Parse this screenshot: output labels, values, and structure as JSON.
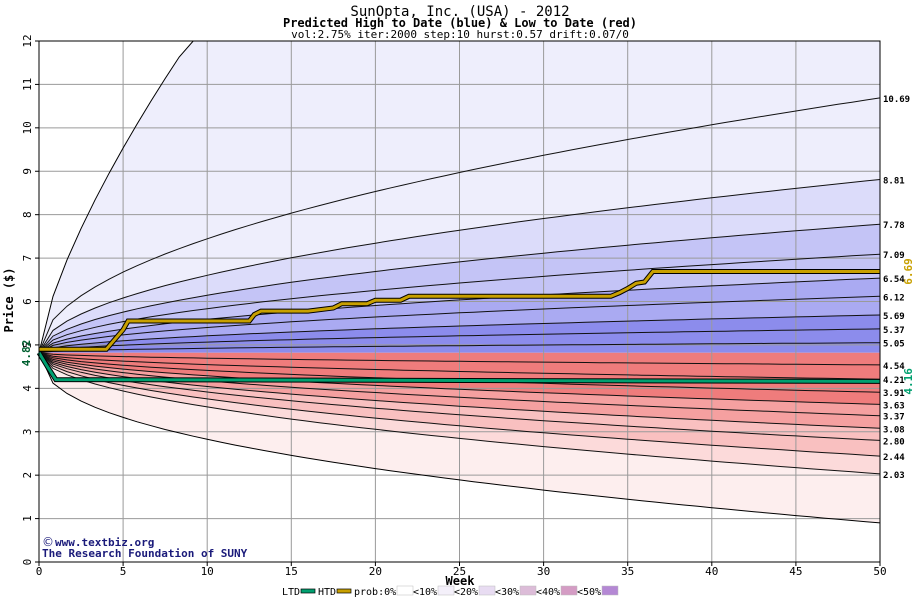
{
  "chart_data": {
    "type": "area",
    "title": "SunOpta, Inc. (USA) - 2012",
    "subtitle": "Predicted High to Date (blue) &  Low to Date (red)",
    "params": "vol:2.75% iter:2000 step:10 hurst:0.57 drift:0.07/0",
    "xlabel": "Week",
    "ylabel": "Price ($)",
    "xlim": [
      0,
      50
    ],
    "ylim": [
      0,
      12
    ],
    "xticks": [
      0,
      5,
      10,
      15,
      20,
      25,
      30,
      35,
      40,
      45,
      50
    ],
    "yticks": [
      0,
      1,
      2,
      3,
      4,
      5,
      6,
      7,
      8,
      9,
      10,
      11,
      12
    ],
    "grid": true,
    "start_price": 4.82,
    "start_label": "4.82",
    "htd_label": "6.69",
    "ltd_label": "4.16",
    "htd_color": "#c8a000",
    "ltd_color": "#00a070",
    "high_percentiles_end": [
      10.69,
      8.81,
      7.78,
      7.09,
      6.54,
      6.12,
      5.69,
      5.37,
      5.05
    ],
    "low_percentiles_end": [
      4.54,
      4.21,
      3.91,
      3.63,
      3.37,
      3.08,
      2.8,
      2.44,
      2.03
    ],
    "right_labels": [
      "10.69",
      "8.81",
      "7.78",
      "7.09",
      "6.54",
      "6.12",
      "5.69",
      "5.37",
      "5.05",
      "4.54",
      "4.21",
      "3.91",
      "3.63",
      "3.37",
      "3.08",
      "2.80",
      "2.44",
      "2.03"
    ],
    "outer_high_end": 12,
    "outer_low_end": 0.9,
    "htd_series": [
      [
        0,
        4.9
      ],
      [
        4,
        4.9
      ],
      [
        5,
        5.35
      ],
      [
        5.3,
        5.55
      ],
      [
        12.5,
        5.55
      ],
      [
        12.8,
        5.7
      ],
      [
        13.2,
        5.78
      ],
      [
        16,
        5.78
      ],
      [
        17.5,
        5.85
      ],
      [
        18,
        5.95
      ],
      [
        19.5,
        5.95
      ],
      [
        20,
        6.03
      ],
      [
        21.5,
        6.03
      ],
      [
        22,
        6.12
      ],
      [
        34,
        6.12
      ],
      [
        34.5,
        6.2
      ],
      [
        35,
        6.3
      ],
      [
        35.5,
        6.42
      ],
      [
        36,
        6.45
      ],
      [
        36.5,
        6.69
      ],
      [
        50,
        6.69
      ]
    ],
    "ltd_series": [
      [
        0,
        4.82
      ],
      [
        0.5,
        4.5
      ],
      [
        1,
        4.2
      ],
      [
        50,
        4.16
      ]
    ],
    "legend": [
      "LTD",
      "HTD",
      "prob:0%",
      "<10%",
      "<20%",
      "<30%",
      "<40%",
      "<50%"
    ],
    "legend_prefix_glyph": "<",
    "credit_line1": "www.textbiz.org",
    "credit_line2": "The Research Foundation of SUNY",
    "colors": {
      "blue_bands": [
        "#eeeefc",
        "#dcdcfa",
        "#c4c4f6",
        "#aaaaf2",
        "#8c8cec"
      ],
      "red_bands": [
        "#fdeeee",
        "#fcdada",
        "#f9c0c0",
        "#f5a0a0",
        "#ef7c7c"
      ],
      "legend_swatches": [
        "#ffffff",
        "#f4f0fa",
        "#e8dcf2",
        "#dcbcd8",
        "#d49cc4",
        "#b488d4"
      ]
    }
  }
}
